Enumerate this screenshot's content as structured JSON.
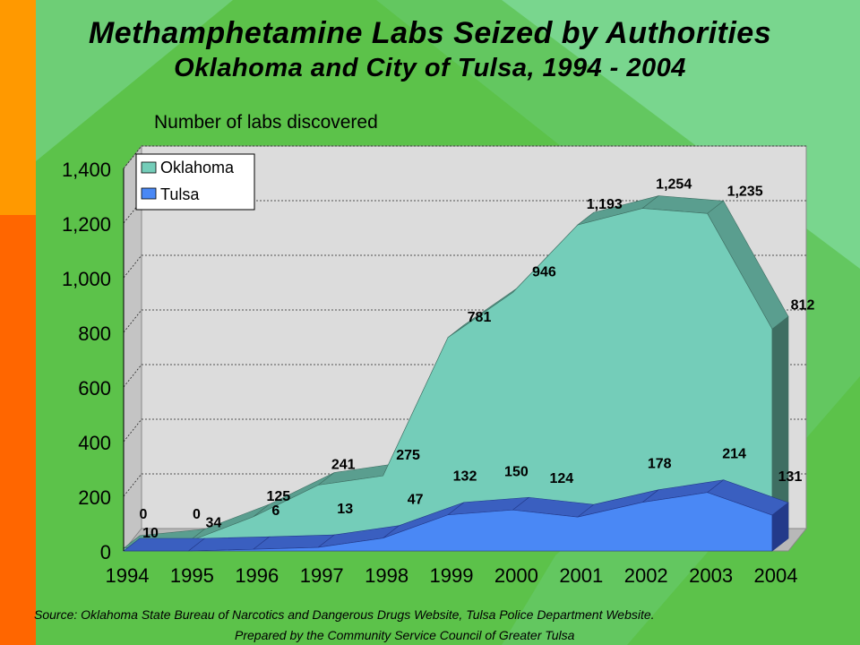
{
  "colors": {
    "background": "#5cc24a",
    "accent_orange": "#ff9900",
    "accent_red": "#ff6600",
    "stripe_light": "#7ed99a",
    "wall": "#dcdcdc",
    "oklahoma_fill": "#74cdb9",
    "oklahoma_top": "#5a9e8f",
    "oklahoma_side": "#3e6e62",
    "tulsa_fill": "#4a88f5",
    "tulsa_top": "#3a5fc0",
    "tulsa_side": "#233a8a"
  },
  "header": {
    "title": "Methamphetamine Labs Seized by Authorities",
    "subtitle": "Oklahoma and City of Tulsa, 1994 - 2004"
  },
  "footer": {
    "source": "Source:  Oklahoma State Bureau of Narcotics and Dangerous Drugs Website, Tulsa Police Department Website.",
    "prepared": "Prepared by the Community Service Council of Greater Tulsa"
  },
  "chart_data": {
    "type": "area",
    "title": "Methamphetamine Labs Seized by Authorities",
    "subtitle": "Oklahoma and City of Tulsa, 1994 - 2004",
    "ylabel": "Number of labs discovered",
    "xlabel": "",
    "categories": [
      "1994",
      "1995",
      "1996",
      "1997",
      "1998",
      "1999",
      "2000",
      "2001",
      "2002",
      "2003",
      "2004"
    ],
    "series": [
      {
        "name": "Oklahoma",
        "values": [
          10,
          34,
          125,
          241,
          275,
          781,
          946,
          1193,
          1254,
          1235,
          812
        ],
        "labels": [
          "10",
          "34",
          "125",
          "241",
          "275",
          "781",
          "946",
          "1,193",
          "1,254",
          "1,235",
          "812"
        ]
      },
      {
        "name": "Tulsa",
        "values": [
          0,
          0,
          6,
          13,
          47,
          132,
          150,
          124,
          178,
          214,
          131
        ],
        "labels": [
          "0",
          "0",
          "6",
          "13",
          "47",
          "132",
          "150",
          "124",
          "178",
          "214",
          "131"
        ]
      }
    ],
    "ylim": [
      0,
      1400
    ],
    "yticks": [
      0,
      200,
      400,
      600,
      800,
      1000,
      1200,
      1400
    ],
    "ytick_labels": [
      "0",
      "200",
      "400",
      "600",
      "800",
      "1,000",
      "1,200",
      "1,400"
    ],
    "grid": true,
    "legend_position": "top-left",
    "three_d": true
  }
}
